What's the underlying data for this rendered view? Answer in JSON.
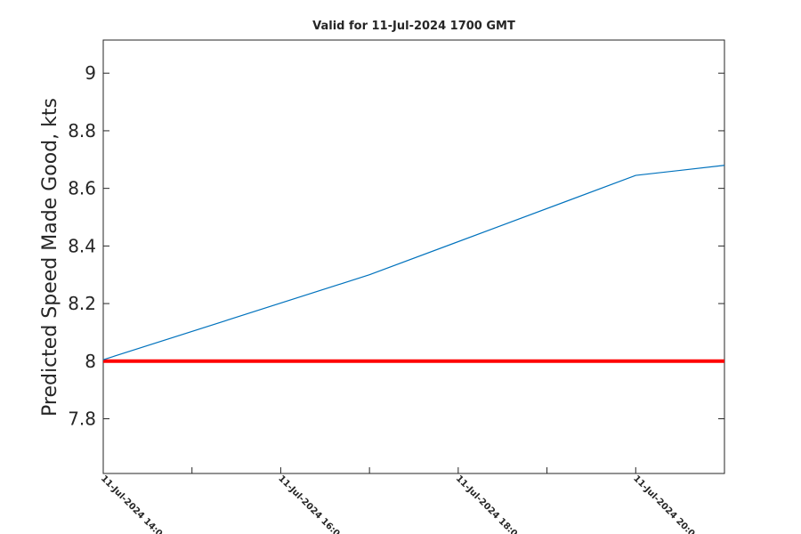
{
  "chart_data": {
    "type": "line",
    "title": "Valid for 11-Jul-2024 1700 GMT",
    "ylabel": "Predicted Speed Made Good, kts",
    "x": [
      "2024-07-11T14:00Z",
      "2024-07-11T17:00Z",
      "2024-07-11T20:00Z",
      "2024-07-11T21:00Z"
    ],
    "series": [
      {
        "color": "#0072bd",
        "values": [
          8.005,
          8.3,
          8.645,
          8.68
        ]
      }
    ],
    "hline": {
      "value": 8,
      "color": "#ff0000"
    },
    "xlim": [
      "2024-07-11T14:00Z",
      "2024-07-11T21:00Z"
    ],
    "xticks": [
      {
        "value": "2024-07-11T14:00Z",
        "label": "11-Jul-2024 14:0"
      },
      {
        "value": "2024-07-11T16:00Z",
        "label": "11-Jul-2024 16:0"
      },
      {
        "value": "2024-07-11T18:00Z",
        "label": "11-Jul-2024 18:0"
      },
      {
        "value": "2024-07-11T20:00Z",
        "label": "11-Jul-2024 20:0"
      }
    ],
    "xminorticks": [
      "2024-07-11T15:00Z",
      "2024-07-11T17:00Z",
      "2024-07-11T19:00Z"
    ],
    "ylim": [
      7.61,
      9.115
    ],
    "yticks": [
      7.8,
      8,
      8.2,
      8.4,
      8.6,
      8.8,
      9
    ],
    "grid": false
  }
}
